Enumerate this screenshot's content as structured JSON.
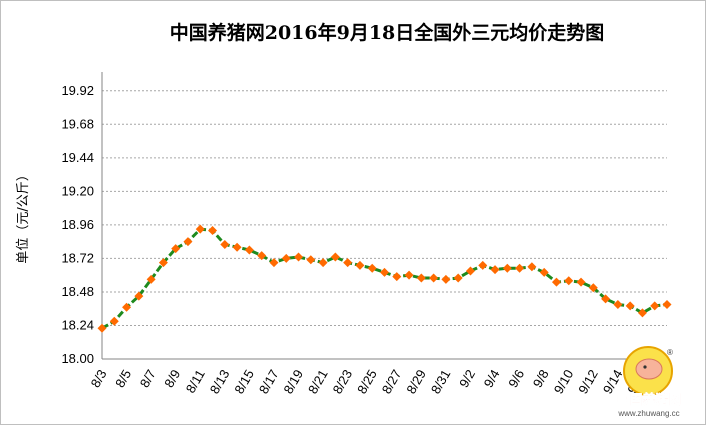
{
  "chart_data": {
    "type": "line",
    "title": "中国养猪网2016年9月18日全国外三元均价走势图",
    "ylabel": "单位（元/公斤）",
    "xlabel": "",
    "ylim": [
      18.0,
      20.04
    ],
    "yticks": [
      "18.00",
      "18.24",
      "18.48",
      "18.72",
      "18.96",
      "19.20",
      "19.44",
      "19.68",
      "19.92"
    ],
    "categories": [
      "8/3",
      "8/5",
      "8/7",
      "8/9",
      "8/11",
      "8/13",
      "8/15",
      "8/17",
      "8/19",
      "8/21",
      "8/23",
      "8/25",
      "8/27",
      "8/29",
      "8/31",
      "9/2",
      "9/4",
      "9/6",
      "9/8",
      "9/10",
      "9/12",
      "9/14",
      "9/16",
      "9/18"
    ],
    "x": [
      "8/3",
      "8/4",
      "8/5",
      "8/6",
      "8/7",
      "8/8",
      "8/9",
      "8/10",
      "8/11",
      "8/12",
      "8/13",
      "8/14",
      "8/15",
      "8/16",
      "8/17",
      "8/18",
      "8/19",
      "8/20",
      "8/21",
      "8/22",
      "8/23",
      "8/24",
      "8/25",
      "8/26",
      "8/27",
      "8/28",
      "8/29",
      "8/30",
      "8/31",
      "9/1",
      "9/2",
      "9/3",
      "9/4",
      "9/5",
      "9/6",
      "9/7",
      "9/8",
      "9/9",
      "9/10",
      "9/11",
      "9/12",
      "9/13",
      "9/14",
      "9/15",
      "9/16",
      "9/17",
      "9/18"
    ],
    "series": [
      {
        "name": "",
        "color": "#1e8a1e",
        "marker_color": "#ff6a00",
        "values": [
          18.22,
          18.27,
          18.37,
          18.45,
          18.57,
          18.69,
          18.79,
          18.84,
          18.93,
          18.92,
          18.82,
          18.8,
          18.78,
          18.74,
          18.69,
          18.72,
          18.73,
          18.71,
          18.69,
          18.73,
          18.69,
          18.67,
          18.65,
          18.62,
          18.59,
          18.6,
          18.58,
          18.58,
          18.57,
          18.58,
          18.63,
          18.67,
          18.64,
          18.65,
          18.65,
          18.66,
          18.62,
          18.55,
          18.56,
          18.55,
          18.51,
          18.43,
          18.39,
          18.38,
          18.33,
          18.38,
          18.39
        ]
      }
    ],
    "grid": true,
    "legend": "none"
  },
  "watermark": {
    "site_name": "中国养猪网",
    "url": "www.zhuwang.cc",
    "registered": "®"
  }
}
